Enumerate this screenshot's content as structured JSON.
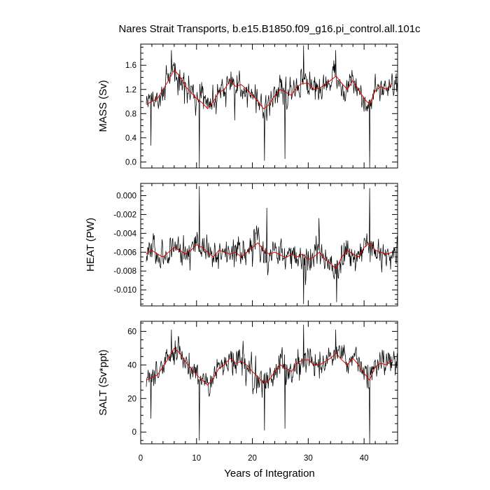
{
  "chart_data": {
    "type": "line",
    "title": "Nares Strait Transports, b.e15.B1850.f09_g16.pi_control.all.101c",
    "xlabel": "Years of Integration",
    "xlim": [
      0,
      46
    ],
    "xticks": [
      0,
      10,
      20,
      30,
      40
    ],
    "x_tick_labels": [
      "0",
      "10",
      "20",
      "30",
      "40"
    ],
    "x_start": 1,
    "x_step": 0.08333,
    "n_points": 540,
    "grid": false,
    "legend": "none",
    "line_color": "#000000",
    "smooth_color": "#e00000",
    "panels": [
      {
        "name": "mass",
        "ylabel": "MASS (Sv)",
        "ylim": [
          -0.1,
          1.95
        ],
        "yticks": [
          0.0,
          0.4,
          0.8,
          1.2,
          1.6
        ],
        "y_tick_labels": [
          "0.0",
          "0.4",
          "0.8",
          "1.2",
          "1.6"
        ],
        "min_value": -0.1,
        "max_value": 1.93,
        "smoothed": {
          "x": [
            1,
            3,
            4,
            5,
            6,
            7,
            8,
            9,
            10,
            11,
            12,
            13,
            14,
            15,
            16,
            17,
            18,
            19,
            20,
            21,
            22,
            23,
            24,
            25,
            26,
            27,
            28,
            29,
            30,
            31,
            32,
            33,
            34,
            35,
            36,
            37,
            38,
            39,
            40,
            41,
            42,
            43,
            44,
            45
          ],
          "values": [
            0.95,
            1.05,
            1.2,
            1.35,
            1.52,
            1.42,
            1.25,
            1.15,
            1.05,
            0.98,
            0.88,
            1.0,
            1.15,
            1.2,
            1.35,
            1.25,
            1.28,
            1.2,
            1.1,
            1.0,
            0.88,
            0.95,
            1.1,
            1.2,
            1.15,
            1.1,
            1.25,
            1.3,
            1.3,
            1.2,
            1.22,
            1.28,
            1.35,
            1.42,
            1.3,
            1.2,
            1.35,
            1.2,
            1.05,
            0.95,
            1.18,
            1.25,
            1.2,
            1.3
          ]
        },
        "spikes": [
          {
            "x": 1.8,
            "value": 0.27
          },
          {
            "x": 5.5,
            "value": 1.85
          },
          {
            "x": 10.5,
            "value": -0.1
          },
          {
            "x": 22.2,
            "value": 0.02
          },
          {
            "x": 25.8,
            "value": 0.05
          },
          {
            "x": 29.2,
            "value": 1.93
          },
          {
            "x": 34.9,
            "value": 1.85
          },
          {
            "x": 41.0,
            "value": -0.1
          }
        ]
      },
      {
        "name": "heat",
        "ylabel": "HEAT (PW)",
        "ylim": [
          -0.0117,
          0.0013
        ],
        "yticks": [
          -0.01,
          -0.008,
          -0.006,
          -0.004,
          -0.002,
          0.0
        ],
        "y_tick_labels": [
          "-0.010",
          "-0.008",
          "-0.006",
          "-0.004",
          "-0.002",
          "0.000"
        ],
        "min_value": -0.0115,
        "max_value": 0.001,
        "smoothed": {
          "x": [
            1,
            2,
            3,
            4,
            5,
            6,
            7,
            8,
            9,
            10,
            11,
            12,
            13,
            14,
            15,
            16,
            17,
            18,
            19,
            20,
            21,
            22,
            23,
            24,
            25,
            26,
            27,
            28,
            29,
            30,
            31,
            32,
            33,
            34,
            35,
            36,
            37,
            38,
            39,
            40,
            41,
            42,
            43,
            44,
            45
          ],
          "values": [
            -0.0062,
            -0.0058,
            -0.0062,
            -0.0065,
            -0.006,
            -0.0055,
            -0.0058,
            -0.0062,
            -0.0058,
            -0.0052,
            -0.0055,
            -0.006,
            -0.0065,
            -0.0058,
            -0.006,
            -0.0062,
            -0.006,
            -0.0065,
            -0.006,
            -0.0055,
            -0.005,
            -0.0058,
            -0.0062,
            -0.006,
            -0.0063,
            -0.0066,
            -0.0062,
            -0.0065,
            -0.0062,
            -0.0068,
            -0.0065,
            -0.006,
            -0.0068,
            -0.0072,
            -0.0078,
            -0.0065,
            -0.0058,
            -0.0062,
            -0.0065,
            -0.0055,
            -0.005,
            -0.0058,
            -0.006,
            -0.0062,
            -0.006
          ]
        },
        "spikes": [
          {
            "x": 10.5,
            "value": 0.001
          },
          {
            "x": 22.6,
            "value": -0.0013
          },
          {
            "x": 29.2,
            "value": -0.0115
          },
          {
            "x": 35.1,
            "value": -0.0113
          },
          {
            "x": 41.0,
            "value": 0.0008
          }
        ]
      },
      {
        "name": "salt",
        "ylabel": "SALT (Sv*ppt)",
        "ylim": [
          -7,
          66
        ],
        "yticks": [
          0,
          20,
          40,
          60
        ],
        "y_tick_labels": [
          "0",
          "20",
          "40",
          "60"
        ],
        "min_value": -7,
        "max_value": 64,
        "smoothed": {
          "x": [
            1,
            3,
            4,
            5,
            6,
            7,
            8,
            9,
            10,
            11,
            12,
            13,
            14,
            15,
            16,
            17,
            18,
            19,
            20,
            21,
            22,
            23,
            24,
            25,
            26,
            27,
            28,
            29,
            30,
            31,
            32,
            33,
            34,
            35,
            36,
            37,
            38,
            39,
            40,
            41,
            42,
            43,
            44,
            45
          ],
          "values": [
            31,
            34,
            39,
            44,
            50,
            47,
            42,
            38,
            34,
            31,
            28,
            32,
            38,
            40,
            44,
            41,
            42,
            40,
            36,
            33,
            29,
            31,
            36,
            40,
            38,
            36,
            41,
            43,
            43,
            40,
            40,
            42,
            44,
            47,
            43,
            40,
            44,
            40,
            35,
            31,
            39,
            41,
            40,
            43
          ]
        },
        "spikes": [
          {
            "x": 1.8,
            "value": 8
          },
          {
            "x": 5.5,
            "value": 61
          },
          {
            "x": 10.5,
            "value": -5
          },
          {
            "x": 22.2,
            "value": 1
          },
          {
            "x": 25.8,
            "value": 2
          },
          {
            "x": 29.2,
            "value": 64
          },
          {
            "x": 34.9,
            "value": 61
          },
          {
            "x": 41.0,
            "value": -7
          }
        ]
      }
    ]
  }
}
